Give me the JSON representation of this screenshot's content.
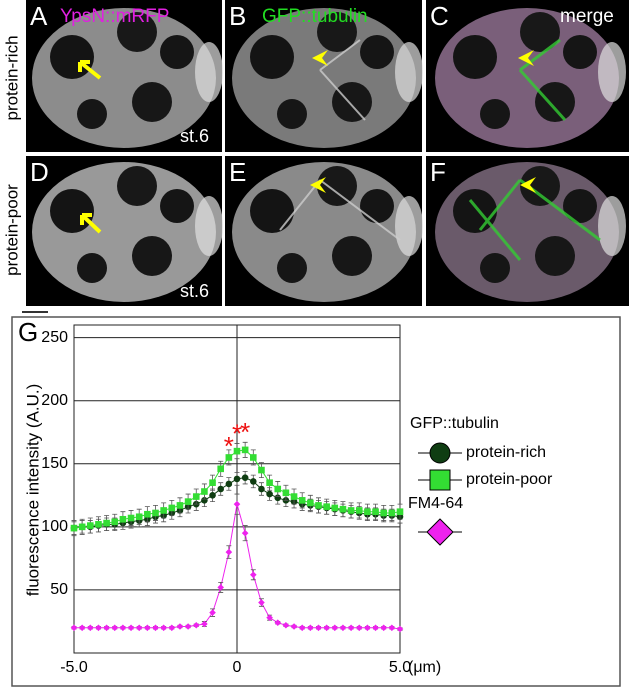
{
  "figure": {
    "panels": [
      {
        "letter": "A",
        "label": "YpsN::mRFP"
      },
      {
        "letter": "B",
        "label": "GFP::tubulin"
      },
      {
        "letter": "C",
        "label": "merge"
      },
      {
        "letter": "D"
      },
      {
        "letter": "E"
      },
      {
        "letter": "F"
      }
    ],
    "row_labels": [
      "protein-rich",
      "protein-poor"
    ],
    "stage_labels": [
      "st.6",
      "st.6"
    ]
  },
  "chart_data": {
    "type": "line",
    "panel_letter": "G",
    "ylabel": "fluorescence intensity (A.U.)",
    "xlabel": "(μm)",
    "legend_title": "GFP::tubulin",
    "x": [
      -5,
      -4.75,
      -4.5,
      -4.25,
      -4,
      -3.75,
      -3.5,
      -3.25,
      -3,
      -2.75,
      -2.5,
      -2.25,
      -2,
      -1.75,
      -1.5,
      -1.25,
      -1,
      -0.75,
      -0.5,
      -0.25,
      0,
      0.25,
      0.5,
      0.75,
      1,
      1.25,
      1.5,
      1.75,
      2,
      2.25,
      2.5,
      2.75,
      3,
      3.25,
      3.5,
      3.75,
      4,
      4.25,
      4.5,
      4.75,
      5
    ],
    "series": [
      {
        "name": "protein-rich",
        "color": "#0f3d12",
        "marker": "circle",
        "values": [
          99,
          100,
          100,
          101,
          102,
          102,
          103,
          104,
          105,
          106,
          108,
          109,
          111,
          113,
          116,
          118,
          121,
          125,
          130,
          134,
          138,
          139,
          136,
          130,
          126,
          123,
          121,
          120,
          118,
          117,
          116,
          115,
          114,
          113,
          112,
          111,
          110,
          110,
          109,
          109,
          108
        ],
        "errors": [
          5,
          5,
          5,
          5,
          5,
          5,
          5,
          5,
          5,
          5,
          5,
          5,
          5,
          5,
          5,
          5,
          5,
          5,
          5,
          5,
          5,
          5,
          5,
          5,
          5,
          5,
          5,
          5,
          5,
          5,
          5,
          5,
          5,
          5,
          5,
          5,
          5,
          5,
          5,
          5,
          5
        ]
      },
      {
        "name": "protein-poor",
        "color": "#33dd33",
        "marker": "square",
        "values": [
          99,
          100,
          101,
          102,
          103,
          104,
          106,
          107,
          108,
          110,
          111,
          113,
          115,
          117,
          120,
          124,
          128,
          135,
          146,
          155,
          160,
          161,
          155,
          145,
          135,
          130,
          127,
          124,
          121,
          119,
          117,
          116,
          115,
          114,
          113,
          113,
          112,
          112,
          111,
          111,
          112
        ],
        "errors": [
          6,
          6,
          6,
          6,
          6,
          6,
          6,
          6,
          6,
          6,
          6,
          6,
          6,
          6,
          6,
          6,
          6,
          6,
          6,
          6,
          6,
          6,
          6,
          6,
          6,
          6,
          6,
          6,
          6,
          6,
          6,
          6,
          6,
          6,
          6,
          6,
          6,
          6,
          6,
          6,
          6
        ]
      },
      {
        "name": "FM4-64",
        "color": "#ee22ee",
        "marker": "diamond",
        "values": [
          20,
          20,
          20,
          20,
          20,
          20,
          20,
          20,
          20,
          20,
          20,
          20,
          20,
          21,
          21,
          22,
          23,
          32,
          52,
          80,
          118,
          95,
          62,
          40,
          28,
          24,
          22,
          21,
          20,
          20,
          20,
          20,
          20,
          20,
          20,
          20,
          20,
          20,
          20,
          20,
          19
        ],
        "errors": [
          1,
          1,
          1,
          1,
          1,
          1,
          1,
          1,
          1,
          1,
          1,
          1,
          1,
          1,
          1,
          1,
          2,
          3,
          4,
          5,
          8,
          6,
          4,
          3,
          2,
          1,
          1,
          1,
          1,
          1,
          1,
          1,
          1,
          1,
          1,
          1,
          1,
          1,
          1,
          1,
          1
        ]
      }
    ],
    "annotations": [
      {
        "text": "*",
        "x": -0.25
      },
      {
        "text": "*",
        "x": 0
      },
      {
        "text": "*",
        "x": 0.25
      }
    ],
    "annotation_color": "#ee1111",
    "xlim": [
      -5,
      5
    ],
    "ylim": [
      0,
      260
    ],
    "xticks": [
      {
        "value": -5,
        "label": "-5.0"
      },
      0,
      {
        "value": 5,
        "label": "5.0"
      }
    ],
    "yticks": [
      50,
      100,
      150,
      200,
      250
    ],
    "grid": true
  }
}
